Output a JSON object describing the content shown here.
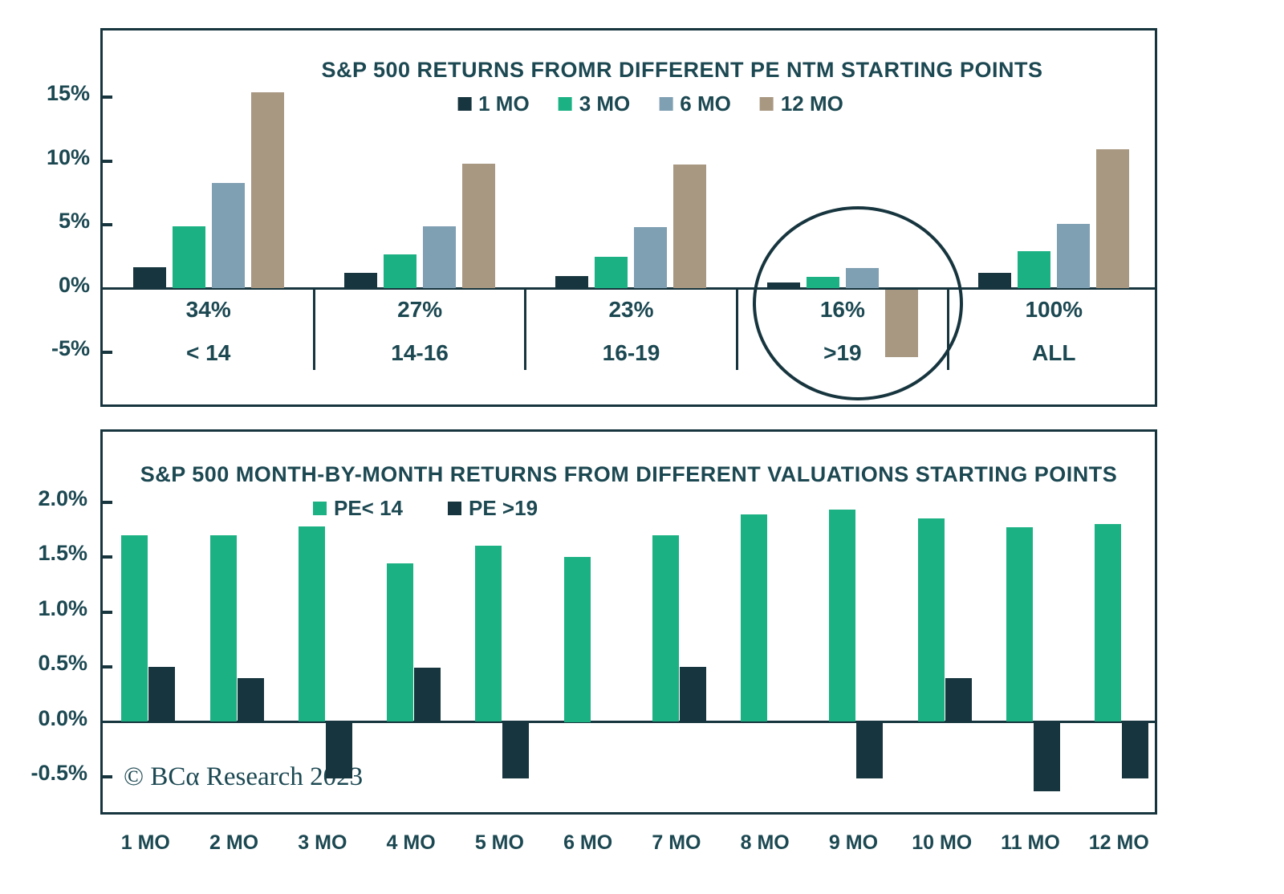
{
  "chart_data": [
    {
      "type": "bar",
      "title": "S&P 500 RETURNS FROMR DIFFERENT PE NTM STARTING POINTS",
      "legend_series": [
        "1 MO",
        "3 MO",
        "6 MO",
        "12 MO"
      ],
      "series_colors": [
        "#17353E",
        "#1CB183",
        "#7F9FB2",
        "#A89781"
      ],
      "ylabel": "",
      "ylim": [
        -7.5,
        19
      ],
      "grid": false,
      "legend_position": "top-center",
      "y_ticks": [
        {
          "label": "15%",
          "value": 15
        },
        {
          "label": "10%",
          "value": 10
        },
        {
          "label": "5%",
          "value": 5
        },
        {
          "label": "0%",
          "value": 0
        },
        {
          "label": "-5%",
          "value": -5
        }
      ],
      "groups": [
        {
          "share": "34%",
          "bucket": "< 14",
          "values": [
            1.7,
            4.9,
            8.3,
            15.4
          ]
        },
        {
          "share": "27%",
          "bucket": "14-16",
          "values": [
            1.2,
            2.7,
            4.9,
            9.8
          ]
        },
        {
          "share": "23%",
          "bucket": "16-19",
          "values": [
            1.0,
            2.5,
            4.8,
            9.7
          ]
        },
        {
          "share": "16%",
          "bucket": ">19",
          "values": [
            0.5,
            0.9,
            1.6,
            -5.3
          ],
          "annotation": "circled"
        },
        {
          "share": "100%",
          "bucket": "ALL",
          "values": [
            1.2,
            2.9,
            5.1,
            10.9
          ]
        }
      ]
    },
    {
      "type": "bar",
      "title": "S&P 500 MONTH-BY-MONTH RETURNS FROM DIFFERENT VALUATIONS STARTING POINTS",
      "categories": [
        "1 MO",
        "2 MO",
        "3 MO",
        "4 MO",
        "5 MO",
        "6 MO",
        "7 MO",
        "8 MO",
        "9 MO",
        "10 MO",
        "11 MO",
        "12 MO"
      ],
      "series": [
        {
          "name": "PE< 14",
          "color": "#1CB183",
          "values": [
            1.7,
            1.7,
            1.78,
            1.44,
            1.6,
            1.5,
            1.7,
            1.89,
            1.93,
            1.85,
            1.77,
            1.8
          ]
        },
        {
          "name": "PE >19",
          "color": "#17353E",
          "values": [
            0.5,
            0.4,
            -0.5,
            0.49,
            -0.5,
            0,
            0.5,
            0,
            -0.5,
            0.4,
            -0.62,
            -0.5
          ]
        }
      ],
      "ylim": [
        -0.85,
        2.2
      ],
      "grid": false,
      "legend_position": "top-left-of-center",
      "y_ticks": [
        {
          "label": "2.0%",
          "value": 2.0
        },
        {
          "label": "1.5%",
          "value": 1.5
        },
        {
          "label": "1.0%",
          "value": 1.0
        },
        {
          "label": "0.5%",
          "value": 0.5
        },
        {
          "label": "0.0%",
          "value": 0.0
        },
        {
          "label": "-0.5%",
          "value": -0.5
        }
      ],
      "footnote": "© BCα Research 2023"
    }
  ]
}
